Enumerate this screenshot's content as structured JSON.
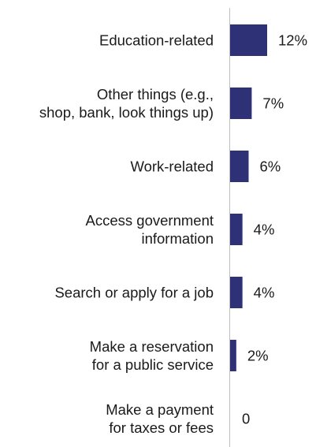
{
  "chart_data": {
    "type": "bar",
    "orientation": "horizontal",
    "categories": [
      "Education-related",
      "Other things (e.g.,\nshop, bank, look things up)",
      "Work-related",
      "Access government\ninformation",
      "Search or apply for a job",
      "Make a reservation\nfor a public service",
      "Make a payment\nfor taxes or fees"
    ],
    "values": [
      12,
      7,
      6,
      4,
      4,
      2,
      0
    ],
    "data_labels": [
      "12%",
      "7%",
      "6%",
      "4%",
      "4%",
      "2%",
      "0"
    ],
    "xlim": [
      0,
      12
    ],
    "bar_color": "#2e3175",
    "axis_color": "#bfbfbf",
    "grid": false,
    "legend": "none"
  }
}
